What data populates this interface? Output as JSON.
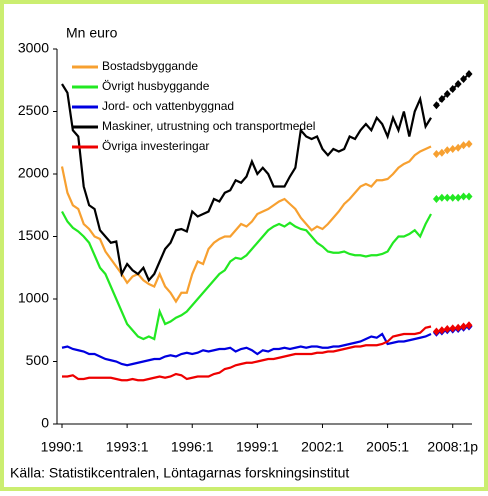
{
  "chart_data": {
    "type": "line",
    "y_label": "Mn euro",
    "source": "Källa: Statistikcentralen, Löntagarnas forskningsinstitut",
    "categories": [
      "1990:1",
      null,
      null,
      null,
      null,
      null,
      null,
      null,
      null,
      null,
      null,
      null,
      "1993:1",
      null,
      null,
      null,
      null,
      null,
      null,
      null,
      null,
      null,
      null,
      null,
      "1996:1",
      null,
      null,
      null,
      null,
      null,
      null,
      null,
      null,
      null,
      null,
      null,
      "1999:1",
      null,
      null,
      null,
      null,
      null,
      null,
      null,
      null,
      null,
      null,
      null,
      "2002:1",
      null,
      null,
      null,
      null,
      null,
      null,
      null,
      null,
      null,
      null,
      null,
      "2005:1",
      null,
      null,
      null,
      null,
      null,
      null,
      null,
      null,
      null,
      null,
      null,
      "2008:1p",
      null,
      null,
      null
    ],
    "ylim": [
      0,
      3000
    ],
    "yticks": [
      0,
      500,
      1000,
      1500,
      2000,
      2500,
      3000
    ],
    "legend": "top-left",
    "series": [
      {
        "name": "Bostadsbyggande",
        "color": "#f7a030",
        "values": [
          2060,
          1850,
          1750,
          1720,
          1600,
          1560,
          1500,
          1480,
          1380,
          1320,
          1260,
          1200,
          1130,
          1180,
          1200,
          1150,
          1120,
          1100,
          1200,
          1100,
          1050,
          980,
          1050,
          1050,
          1200,
          1300,
          1280,
          1400,
          1450,
          1480,
          1500,
          1500,
          1550,
          1600,
          1580,
          1620,
          1680,
          1700,
          1720,
          1750,
          1780,
          1800,
          1760,
          1720,
          1650,
          1600,
          1550,
          1580,
          1560,
          1600,
          1650,
          1700,
          1760,
          1800,
          1850,
          1900,
          1920,
          1900,
          1950,
          1950,
          1960,
          2000,
          2050,
          2080,
          2100,
          2150,
          2180,
          2200,
          2220,
          null,
          null,
          null,
          null,
          null,
          null,
          null
        ],
        "forecast": [
          null,
          null,
          null,
          null,
          null,
          null,
          null,
          null,
          null,
          null,
          null,
          null,
          null,
          null,
          null,
          null,
          null,
          null,
          null,
          null,
          null,
          null,
          null,
          null,
          null,
          null,
          null,
          null,
          null,
          null,
          null,
          null,
          null,
          null,
          null,
          null,
          null,
          null,
          null,
          null,
          null,
          null,
          null,
          null,
          null,
          null,
          null,
          null,
          null,
          null,
          null,
          null,
          null,
          null,
          null,
          null,
          null,
          null,
          null,
          null,
          null,
          null,
          null,
          null,
          null,
          null,
          null,
          null,
          null,
          2160,
          2170,
          2190,
          2200,
          2210,
          2230,
          2240
        ]
      },
      {
        "name": "Övrigt husbyggande",
        "color": "#22e822",
        "values": [
          1700,
          1620,
          1570,
          1540,
          1500,
          1450,
          1350,
          1250,
          1200,
          1100,
          1000,
          900,
          800,
          750,
          700,
          680,
          700,
          680,
          900,
          800,
          820,
          850,
          870,
          900,
          950,
          1000,
          1050,
          1100,
          1150,
          1200,
          1230,
          1300,
          1330,
          1320,
          1350,
          1400,
          1450,
          1500,
          1550,
          1580,
          1600,
          1580,
          1610,
          1580,
          1560,
          1550,
          1500,
          1450,
          1420,
          1380,
          1370,
          1370,
          1380,
          1360,
          1350,
          1350,
          1340,
          1350,
          1350,
          1360,
          1380,
          1450,
          1500,
          1500,
          1520,
          1550,
          1500,
          1600,
          1680,
          null,
          null,
          null,
          null,
          null,
          null,
          null
        ],
        "forecast": [
          null,
          null,
          null,
          null,
          null,
          null,
          null,
          null,
          null,
          null,
          null,
          null,
          null,
          null,
          null,
          null,
          null,
          null,
          null,
          null,
          null,
          null,
          null,
          null,
          null,
          null,
          null,
          null,
          null,
          null,
          null,
          null,
          null,
          null,
          null,
          null,
          null,
          null,
          null,
          null,
          null,
          null,
          null,
          null,
          null,
          null,
          null,
          null,
          null,
          null,
          null,
          null,
          null,
          null,
          null,
          null,
          null,
          null,
          null,
          null,
          null,
          null,
          null,
          null,
          null,
          null,
          null,
          null,
          null,
          1800,
          1810,
          1810,
          1810,
          1810,
          1820,
          1820
        ]
      },
      {
        "name": "Jord- och vattenbyggnad",
        "color": "#0000e0",
        "values": [
          610,
          620,
          600,
          590,
          580,
          560,
          560,
          540,
          520,
          510,
          500,
          480,
          470,
          480,
          490,
          500,
          510,
          520,
          520,
          540,
          550,
          540,
          560,
          570,
          560,
          570,
          590,
          580,
          590,
          600,
          600,
          610,
          580,
          600,
          610,
          590,
          560,
          590,
          580,
          600,
          600,
          610,
          600,
          610,
          620,
          610,
          620,
          620,
          610,
          610,
          620,
          620,
          630,
          640,
          650,
          660,
          680,
          700,
          690,
          720,
          640,
          650,
          660,
          660,
          670,
          680,
          690,
          700,
          720,
          null,
          null,
          null,
          null,
          null,
          null,
          null
        ],
        "forecast": [
          null,
          null,
          null,
          null,
          null,
          null,
          null,
          null,
          null,
          null,
          null,
          null,
          null,
          null,
          null,
          null,
          null,
          null,
          null,
          null,
          null,
          null,
          null,
          null,
          null,
          null,
          null,
          null,
          null,
          null,
          null,
          null,
          null,
          null,
          null,
          null,
          null,
          null,
          null,
          null,
          null,
          null,
          null,
          null,
          null,
          null,
          null,
          null,
          null,
          null,
          null,
          null,
          null,
          null,
          null,
          null,
          null,
          null,
          null,
          null,
          null,
          null,
          null,
          null,
          null,
          null,
          null,
          null,
          null,
          730,
          740,
          750,
          755,
          760,
          770,
          780
        ]
      },
      {
        "name": "Maskiner, utrustning och transportmedel",
        "color": "#000000",
        "values": [
          2720,
          2650,
          2350,
          2300,
          1900,
          1750,
          1720,
          1550,
          1500,
          1450,
          1460,
          1200,
          1280,
          1230,
          1200,
          1250,
          1150,
          1200,
          1300,
          1400,
          1450,
          1550,
          1560,
          1540,
          1700,
          1660,
          1680,
          1700,
          1800,
          1780,
          1850,
          1870,
          1950,
          1930,
          1980,
          2100,
          2000,
          2050,
          2000,
          1900,
          1900,
          1900,
          1980,
          2050,
          2350,
          2300,
          2280,
          2300,
          2200,
          2150,
          2200,
          2180,
          2200,
          2300,
          2280,
          2350,
          2400,
          2350,
          2450,
          2400,
          2300,
          2450,
          2350,
          2500,
          2300,
          2500,
          2600,
          2380,
          2450,
          null,
          null,
          null,
          null,
          null,
          null,
          null
        ],
        "forecast": [
          null,
          null,
          null,
          null,
          null,
          null,
          null,
          null,
          null,
          null,
          null,
          null,
          null,
          null,
          null,
          null,
          null,
          null,
          null,
          null,
          null,
          null,
          null,
          null,
          null,
          null,
          null,
          null,
          null,
          null,
          null,
          null,
          null,
          null,
          null,
          null,
          null,
          null,
          null,
          null,
          null,
          null,
          null,
          null,
          null,
          null,
          null,
          null,
          null,
          null,
          null,
          null,
          null,
          null,
          null,
          null,
          null,
          null,
          null,
          null,
          null,
          null,
          null,
          null,
          null,
          null,
          null,
          null,
          null,
          2550,
          2600,
          2640,
          2680,
          2720,
          2760,
          2800
        ]
      },
      {
        "name": "Övriga investeringar",
        "color": "#ee0000",
        "values": [
          380,
          380,
          390,
          360,
          360,
          370,
          370,
          370,
          370,
          370,
          360,
          350,
          350,
          360,
          350,
          350,
          360,
          370,
          380,
          370,
          380,
          400,
          390,
          360,
          370,
          380,
          380,
          380,
          400,
          410,
          440,
          450,
          470,
          480,
          490,
          490,
          500,
          510,
          520,
          520,
          530,
          540,
          550,
          560,
          560,
          560,
          560,
          570,
          570,
          580,
          580,
          590,
          600,
          610,
          620,
          620,
          630,
          630,
          630,
          640,
          660,
          700,
          710,
          720,
          720,
          720,
          730,
          770,
          780,
          null,
          null,
          null,
          null,
          null,
          null,
          null
        ],
        "forecast": [
          null,
          null,
          null,
          null,
          null,
          null,
          null,
          null,
          null,
          null,
          null,
          null,
          null,
          null,
          null,
          null,
          null,
          null,
          null,
          null,
          null,
          null,
          null,
          null,
          null,
          null,
          null,
          null,
          null,
          null,
          null,
          null,
          null,
          null,
          null,
          null,
          null,
          null,
          null,
          null,
          null,
          null,
          null,
          null,
          null,
          null,
          null,
          null,
          null,
          null,
          null,
          null,
          null,
          null,
          null,
          null,
          null,
          null,
          null,
          null,
          null,
          null,
          null,
          null,
          null,
          null,
          null,
          null,
          null,
          740,
          750,
          760,
          765,
          770,
          780,
          790
        ]
      }
    ]
  }
}
